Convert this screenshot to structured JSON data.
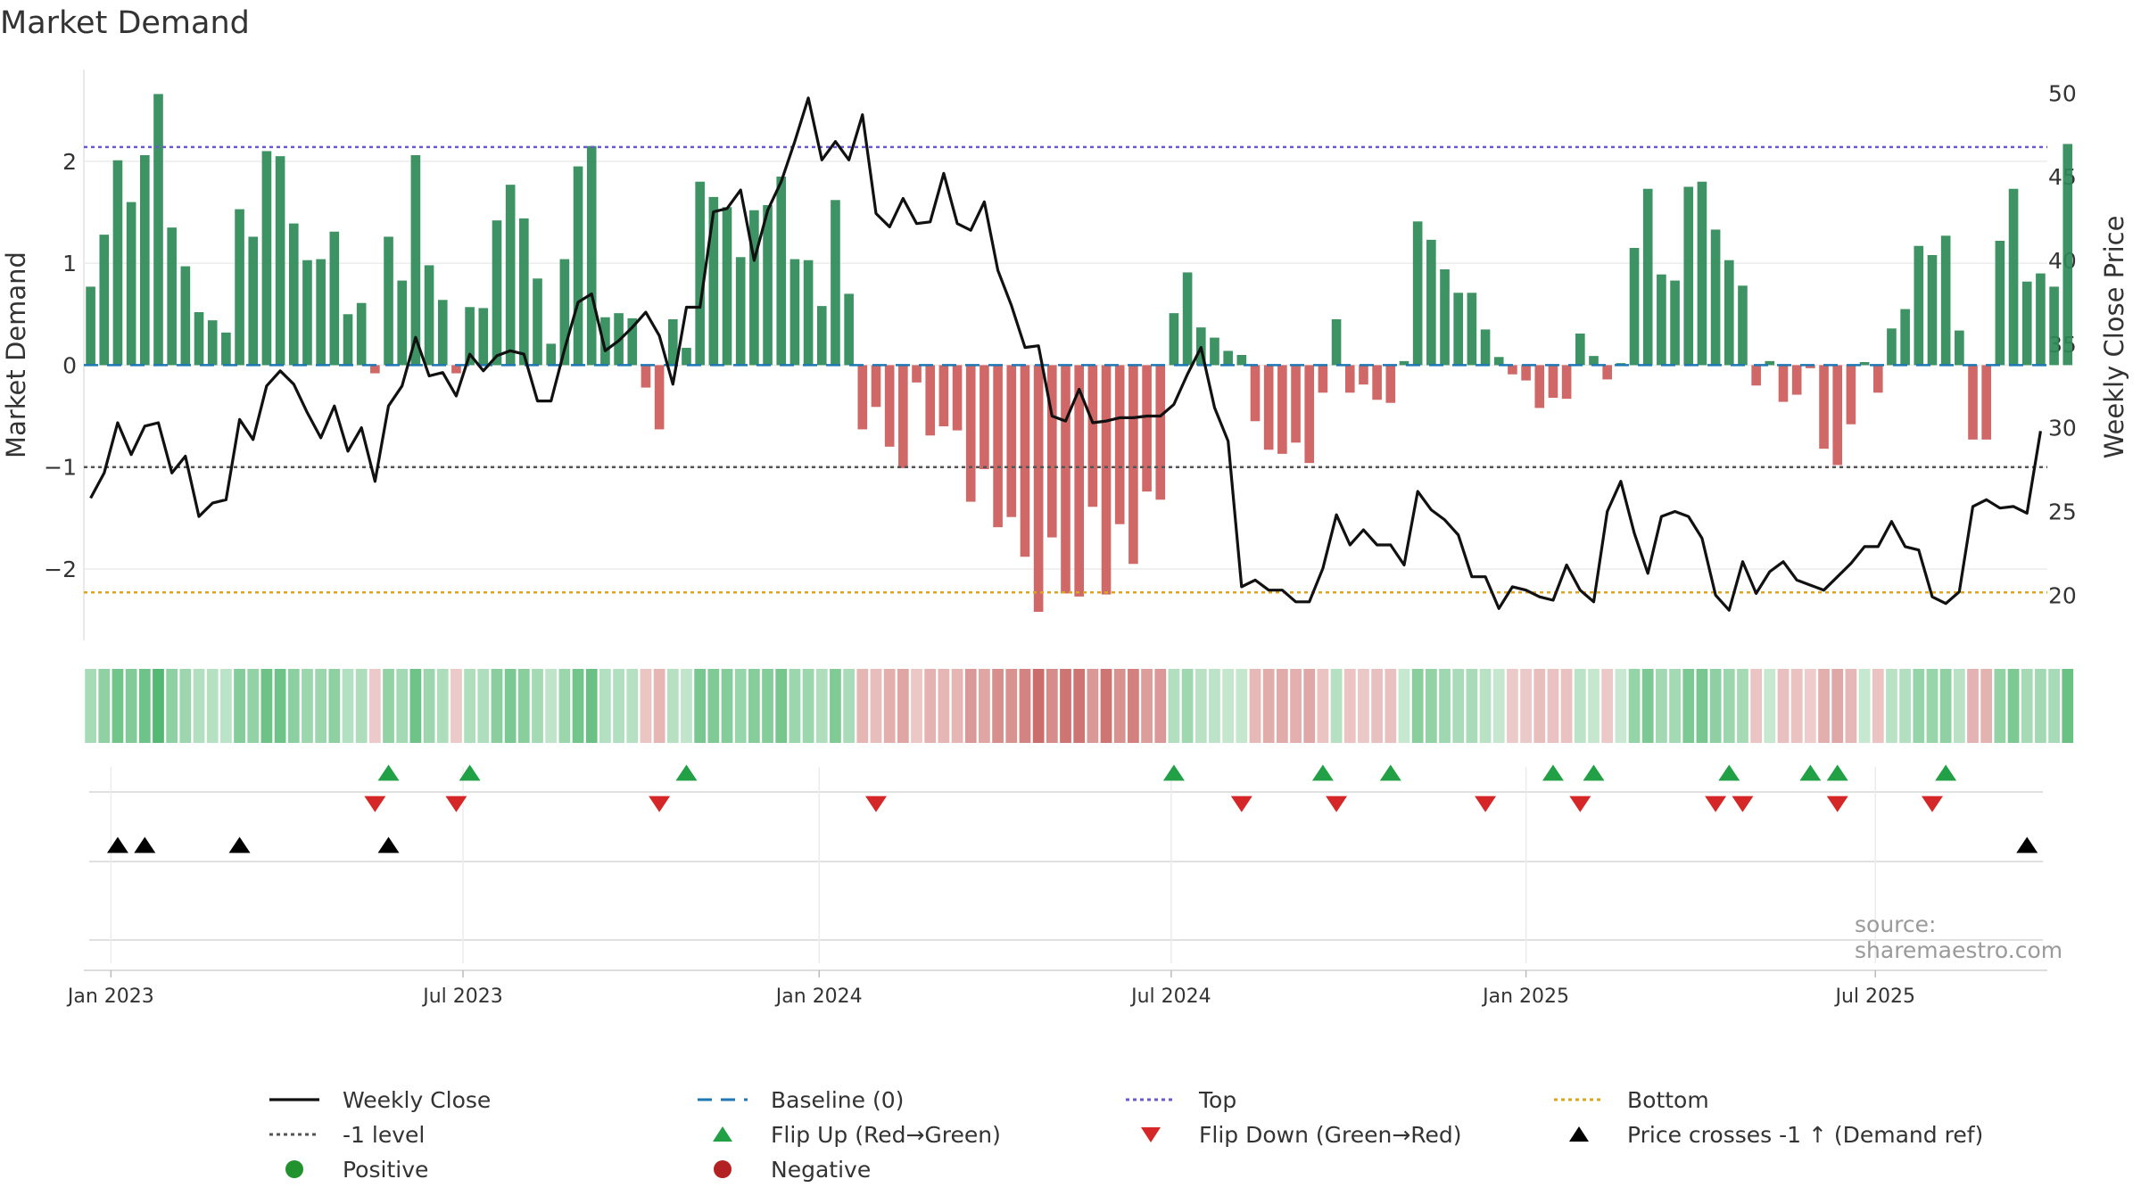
{
  "title": "Market Demand",
  "source": "source: sharemaestro.com",
  "chart_data": {
    "type": "bar",
    "title": "Market Demand",
    "ylabel": "Market Demand",
    "y2label": "Weekly Close Price",
    "ylim": [
      -2.7,
      2.9
    ],
    "y2lim": [
      17.3,
      51.4
    ],
    "yticks": [
      -2,
      -1,
      0,
      1,
      2
    ],
    "ytick_labels": [
      "−2",
      "−1",
      "0",
      "1",
      "2"
    ],
    "y2ticks": [
      20,
      25,
      30,
      35,
      40,
      45,
      50
    ],
    "y2tick_labels": [
      "20",
      "25",
      "30",
      "35",
      "40",
      "45",
      "50"
    ],
    "xticks": [
      {
        "label": "Jan 2023",
        "week": 1.5
      },
      {
        "label": "Jul 2023",
        "week": 27.5
      },
      {
        "label": "Jan 2024",
        "week": 53.8
      },
      {
        "label": "Jul 2024",
        "week": 79.8
      },
      {
        "label": "Jan 2025",
        "week": 106
      },
      {
        "label": "Jul 2025",
        "week": 131.8
      }
    ],
    "weeks": 145,
    "demand": [
      0.77,
      1.28,
      2.01,
      1.6,
      2.06,
      2.66,
      1.35,
      0.97,
      0.52,
      0.44,
      0.32,
      1.53,
      1.26,
      2.1,
      2.05,
      1.39,
      1.03,
      1.04,
      1.31,
      0.5,
      0.61,
      -0.08,
      1.26,
      0.83,
      2.06,
      0.98,
      0.64,
      -0.08,
      0.57,
      0.56,
      1.42,
      1.77,
      1.44,
      0.85,
      0.21,
      1.04,
      1.95,
      2.15,
      0.47,
      0.51,
      0.46,
      -0.22,
      -0.63,
      0.45,
      0.17,
      1.8,
      1.65,
      1.55,
      1.06,
      1.52,
      1.57,
      1.85,
      1.04,
      1.03,
      0.58,
      1.62,
      0.7,
      -0.63,
      -0.41,
      -0.8,
      -1.01,
      -0.17,
      -0.69,
      -0.6,
      -0.64,
      -1.34,
      -1.02,
      -1.59,
      -1.49,
      -1.88,
      -2.42,
      -1.69,
      -2.24,
      -2.27,
      -1.39,
      -2.25,
      -1.56,
      -1.95,
      -1.24,
      -1.32,
      0.51,
      0.91,
      0.37,
      0.27,
      0.14,
      0.1,
      -0.55,
      -0.83,
      -0.87,
      -0.76,
      -0.96,
      -0.27,
      0.45,
      -0.27,
      -0.19,
      -0.34,
      -0.37,
      0.04,
      1.41,
      1.23,
      0.94,
      0.71,
      0.71,
      0.35,
      0.08,
      -0.09,
      -0.15,
      -0.42,
      -0.32,
      -0.33,
      0.31,
      0.09,
      -0.14,
      0.02,
      1.15,
      1.73,
      0.89,
      0.83,
      1.75,
      1.8,
      1.33,
      1.03,
      0.78,
      -0.2,
      0.04,
      -0.36,
      -0.29,
      -0.03,
      -0.82,
      -0.98,
      -0.58,
      0.03,
      -0.27,
      0.36,
      0.55,
      1.17,
      1.08,
      1.27,
      0.34,
      -0.73,
      -0.73,
      1.22,
      1.73,
      0.82,
      0.9,
      0.77,
      2.17
    ],
    "close": [
      25.8,
      27.3,
      30.3,
      28.4,
      30.1,
      30.3,
      27.3,
      28.3,
      24.7,
      25.5,
      25.7,
      30.5,
      29.3,
      32.5,
      33.4,
      32.6,
      30.9,
      29.4,
      31.3,
      28.6,
      30.0,
      26.8,
      31.3,
      32.5,
      35.4,
      33.1,
      33.3,
      31.9,
      34.4,
      33.4,
      34.3,
      34.6,
      34.4,
      31.6,
      31.6,
      34.7,
      37.5,
      38.0,
      34.6,
      35.2,
      36.0,
      36.9,
      35.5,
      32.6,
      37.2,
      37.2,
      42.9,
      43.1,
      44.2,
      40.0,
      43.0,
      44.7,
      47.1,
      49.7,
      46.0,
      47.1,
      46.0,
      48.7,
      42.8,
      42.0,
      43.7,
      42.2,
      42.3,
      45.2,
      42.2,
      41.8,
      43.5,
      39.4,
      37.3,
      34.8,
      34.9,
      30.7,
      30.4,
      32.3,
      30.3,
      30.4,
      30.6,
      30.6,
      30.7,
      30.7,
      31.4,
      33.2,
      34.8,
      31.2,
      29.2,
      20.5,
      20.9,
      20.3,
      20.3,
      19.6,
      19.6,
      21.6,
      24.8,
      23.0,
      23.9,
      23.0,
      23.0,
      21.8,
      26.2,
      25.1,
      24.5,
      23.6,
      21.1,
      21.1,
      19.2,
      20.5,
      20.3,
      19.9,
      19.7,
      21.8,
      20.3,
      19.6,
      25.0,
      26.8,
      23.7,
      21.3,
      24.7,
      25.0,
      24.7,
      23.4,
      20.0,
      19.1,
      22.0,
      20.1,
      21.4,
      22.0,
      20.9,
      20.6,
      20.3,
      21.1,
      21.9,
      22.9,
      22.9,
      24.4,
      22.9,
      22.7,
      19.9,
      19.5,
      20.2,
      25.3,
      25.7,
      25.2,
      25.3,
      24.9,
      29.8
    ],
    "top_level": 2.14,
    "bottom_level": -2.23,
    "minus1_level": -1,
    "baseline": 0,
    "flip_up_weeks": [
      22,
      28,
      44,
      80,
      91,
      96,
      108,
      111,
      121,
      127,
      129,
      137
    ],
    "flip_down_weeks": [
      21,
      27,
      42,
      58,
      85,
      92,
      103,
      110,
      120,
      122,
      129,
      136
    ],
    "price_cross_weeks": [
      2,
      4,
      11,
      22,
      143
    ],
    "colors": {
      "positive_bar": "#2e8b57",
      "negative_bar": "#cd5c5c",
      "close_line": "#111111",
      "baseline": "#1f77b4",
      "top": "#6a5acd",
      "bottom": "#daa520",
      "minus1": "#555555",
      "flip_up": "#22a046",
      "flip_down": "#d62728",
      "price_cross": "#000000",
      "heat_pos": "#3cae5e",
      "heat_neg": "#c0504d"
    }
  },
  "legend": [
    {
      "key": "weekly_close",
      "label": "Weekly Close",
      "symbol": "solid-line",
      "color": "#111111"
    },
    {
      "key": "baseline",
      "label": "Baseline (0)",
      "symbol": "dashed-line",
      "color": "#1f77b4"
    },
    {
      "key": "top",
      "label": "Top",
      "symbol": "dotted-line",
      "color": "#6a5acd"
    },
    {
      "key": "bottom",
      "label": "Bottom",
      "symbol": "dotted-line",
      "color": "#daa520"
    },
    {
      "key": "minus1",
      "label": "-1 level",
      "symbol": "dotted-line",
      "color": "#555555"
    },
    {
      "key": "flip_up",
      "label": "Flip Up (Red→Green)",
      "symbol": "triangle-up",
      "color": "#22a046"
    },
    {
      "key": "flip_down",
      "label": "Flip Down (Green→Red)",
      "symbol": "triangle-down",
      "color": "#d62728"
    },
    {
      "key": "price_cross",
      "label": "Price crosses -1 ↑ (Demand ref)",
      "symbol": "triangle-up",
      "color": "#000000"
    },
    {
      "key": "positive",
      "label": "Positive",
      "symbol": "circle",
      "color": "#22922e"
    },
    {
      "key": "negative",
      "label": "Negative",
      "symbol": "circle",
      "color": "#b22222"
    }
  ]
}
